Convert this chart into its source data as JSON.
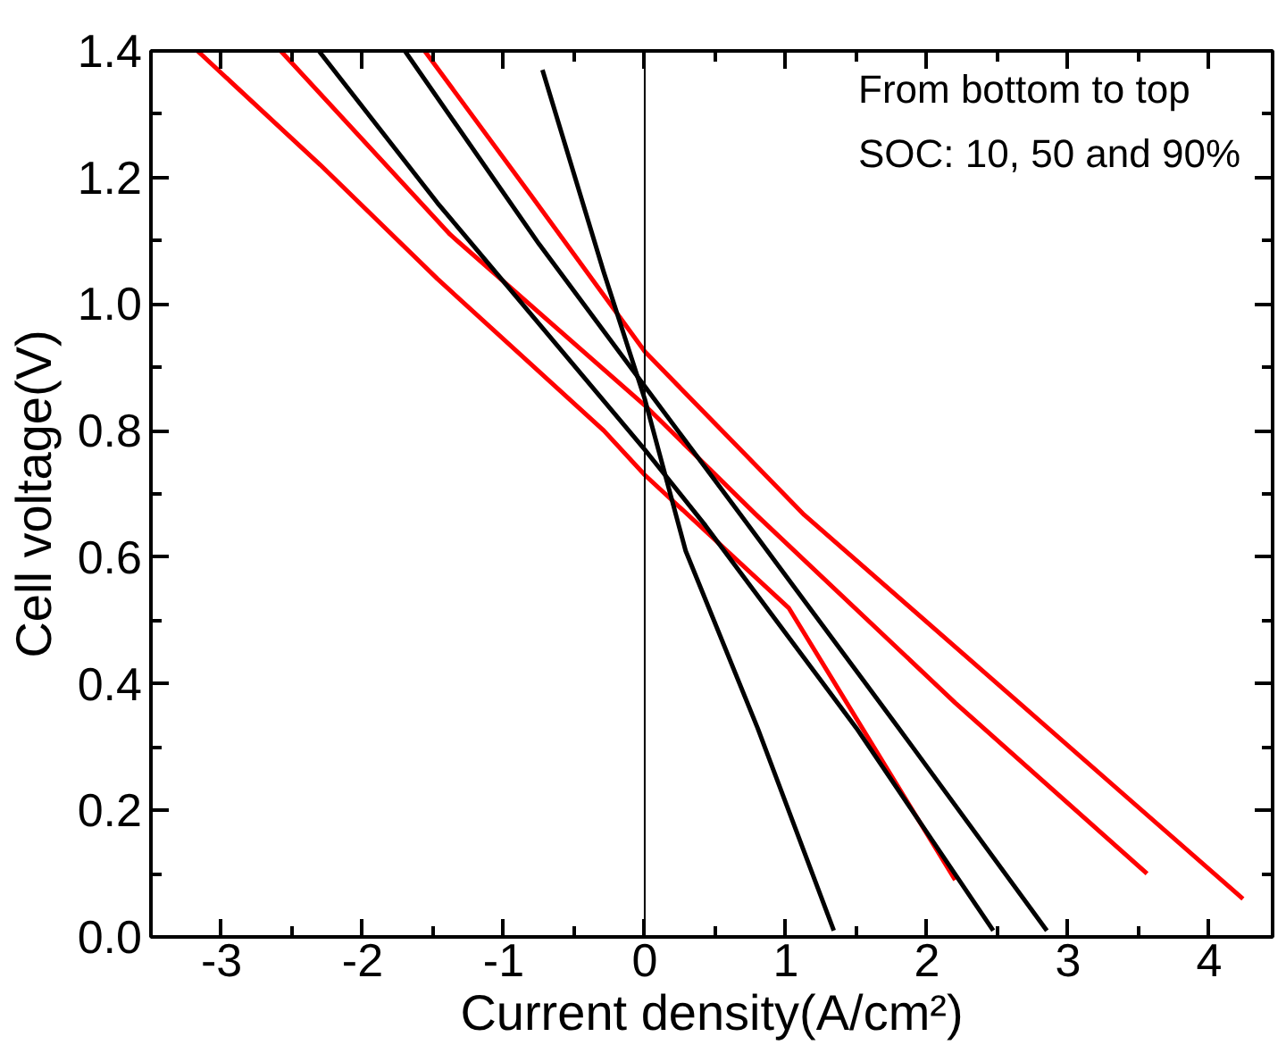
{
  "chart_data": {
    "type": "line",
    "xlabel": "Current density(A/cm²)",
    "ylabel": "Cell voltage(V)",
    "annotations": [
      "From bottom to top",
      "SOC: 10, 50 and 90%"
    ],
    "series": [
      {
        "color": "#ff0000",
        "x": [
          -3.17,
          -2.3,
          -1.47,
          -0.29,
          0,
          1.02,
          2.2
        ],
        "values": [
          1.4,
          1.22,
          1.04,
          0.8,
          0.73,
          0.52,
          0.09
        ]
      },
      {
        "color": "#ff0000",
        "x": [
          -2.58,
          -1.38,
          0,
          0.79,
          2.2,
          3.56
        ],
        "values": [
          1.4,
          1.11,
          0.84,
          0.667,
          0.37,
          0.1
        ]
      },
      {
        "color": "#ff0000",
        "x": [
          -1.56,
          -0.8,
          0,
          1.13,
          2.5,
          4.24
        ],
        "values": [
          1.4,
          1.17,
          0.925,
          0.667,
          0.4,
          0.06
        ]
      },
      {
        "color": "#000000",
        "x": [
          -0.725,
          -0.29,
          0,
          0.29,
          0.8,
          1.34
        ],
        "values": [
          1.37,
          1.05,
          0.85,
          0.61,
          0.33,
          0.01
        ]
      },
      {
        "color": "#000000",
        "x": [
          -2.31,
          -1.47,
          0,
          0.43,
          1.5,
          2.47
        ],
        "values": [
          1.4,
          1.16,
          0.77,
          0.65,
          0.33,
          0.01
        ]
      },
      {
        "color": "#000000",
        "x": [
          -1.7,
          -0.75,
          0,
          0.68,
          1.8,
          2.85
        ],
        "values": [
          1.4,
          1.095,
          0.87,
          0.667,
          0.33,
          0.01
        ]
      }
    ],
    "xlim": [
      -3.5,
      4.45
    ],
    "ylim": [
      0,
      1.4
    ],
    "xticks": [
      -3,
      -2,
      -1,
      0,
      1,
      2,
      3,
      4
    ],
    "yticks": [
      {
        "value": 0,
        "label": "0.0"
      },
      {
        "value": 0.2,
        "label": "0.2"
      },
      {
        "value": 0.4,
        "label": "0.4"
      },
      {
        "value": 0.6,
        "label": "0.6"
      },
      {
        "value": 0.8,
        "label": "0.8"
      },
      {
        "value": 1.0,
        "label": "1.0"
      },
      {
        "value": 1.2,
        "label": "1.2"
      },
      {
        "value": 1.4,
        "label": "1.4"
      }
    ],
    "ref_lines": [
      {
        "axis": "x",
        "value": 0,
        "color": "#000000"
      }
    ],
    "grid": false,
    "line_style": "solid",
    "marker": "none"
  }
}
